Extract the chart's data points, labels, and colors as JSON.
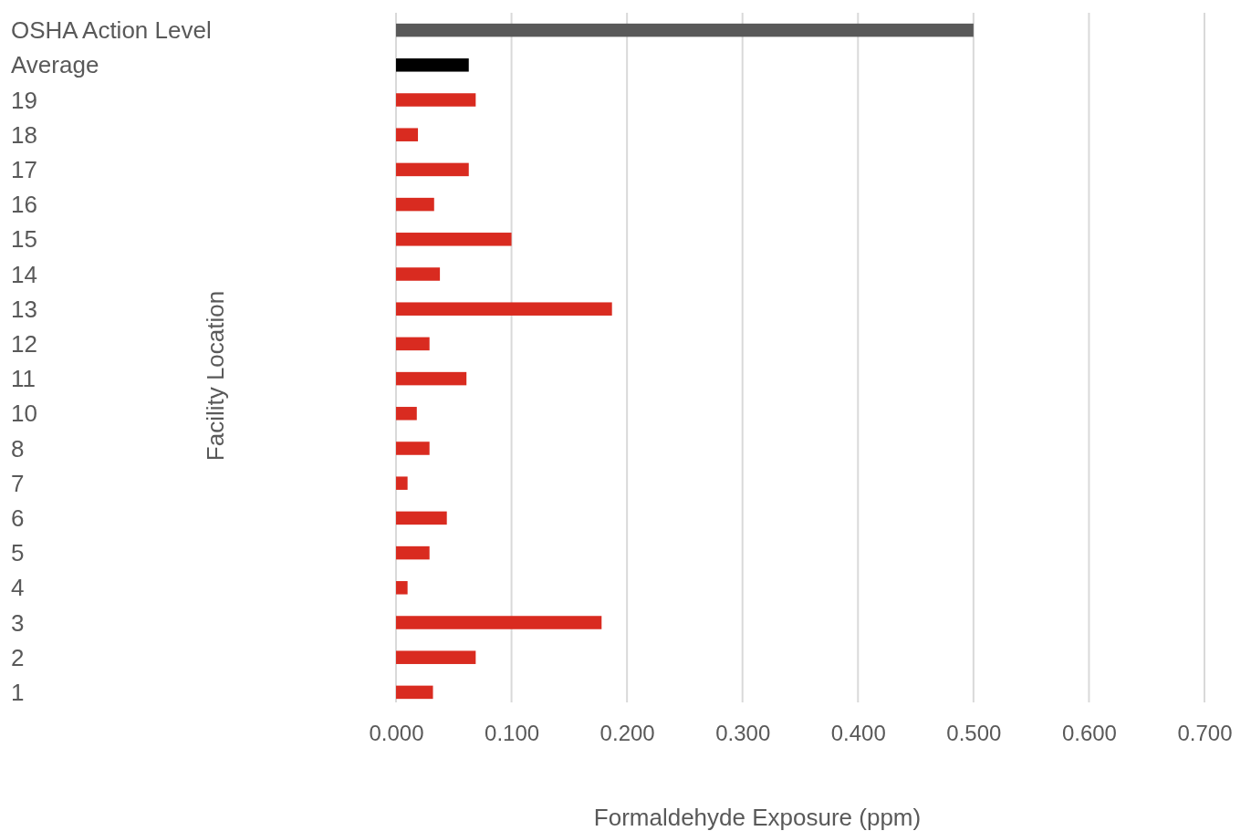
{
  "chart_data": {
    "type": "bar",
    "orientation": "horizontal",
    "xlabel": "Formaldehyde Exposure (ppm)",
    "ylabel": "Facility Location",
    "categories": [
      "OSHA Action Level",
      "Average",
      "19",
      "18",
      "17",
      "16",
      "15",
      "14",
      "13",
      "12",
      "11",
      "10",
      "8",
      "7",
      "6",
      "5",
      "4",
      "3",
      "2",
      "1"
    ],
    "values": [
      0.5,
      0.063,
      0.069,
      0.019,
      0.063,
      0.033,
      0.1,
      0.038,
      0.187,
      0.029,
      0.061,
      0.018,
      0.029,
      0.01,
      0.044,
      0.029,
      0.01,
      0.178,
      0.069,
      0.032
    ],
    "colors": [
      "#595959",
      "#000000",
      "#d92b20",
      "#d92b20",
      "#d92b20",
      "#d92b20",
      "#d92b20",
      "#d92b20",
      "#d92b20",
      "#d92b20",
      "#d92b20",
      "#d92b20",
      "#d92b20",
      "#d92b20",
      "#d92b20",
      "#d92b20",
      "#d92b20",
      "#d92b20",
      "#d92b20",
      "#d92b20"
    ],
    "xlim": [
      0,
      0.7
    ],
    "xticks": [
      {
        "value": 0,
        "label": "0.000"
      },
      {
        "value": 0.1,
        "label": "0.100"
      },
      {
        "value": 0.2,
        "label": "0.200"
      },
      {
        "value": 0.3,
        "label": "0.300"
      },
      {
        "value": 0.4,
        "label": "0.400"
      },
      {
        "value": 0.5,
        "label": "0.500"
      },
      {
        "value": 0.6,
        "label": "0.600"
      },
      {
        "value": 0.7,
        "label": "0.700"
      }
    ],
    "grid": "x"
  }
}
